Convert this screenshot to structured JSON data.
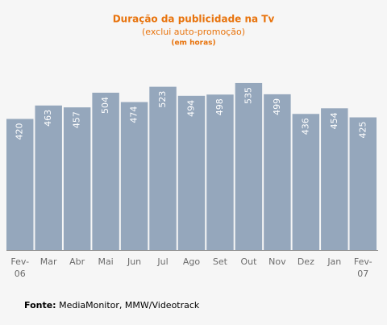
{
  "chart_data": {
    "type": "bar",
    "title": "Duração da publicidade na Tv",
    "subtitle": "(exclui auto-promoção)",
    "unit_note": "(em horas)",
    "categories": [
      "Fev-06",
      "Mar",
      "Abr",
      "Mai",
      "Jun",
      "Jul",
      "Ago",
      "Set",
      "Out",
      "Nov",
      "Dez",
      "Jan",
      "Fev-07"
    ],
    "values": [
      420,
      463,
      457,
      504,
      474,
      523,
      494,
      498,
      535,
      499,
      436,
      454,
      425
    ],
    "color": "#95a7bc",
    "source_label": "Fonte:",
    "source": "MediaMonitor, MMW/Videotrack"
  }
}
